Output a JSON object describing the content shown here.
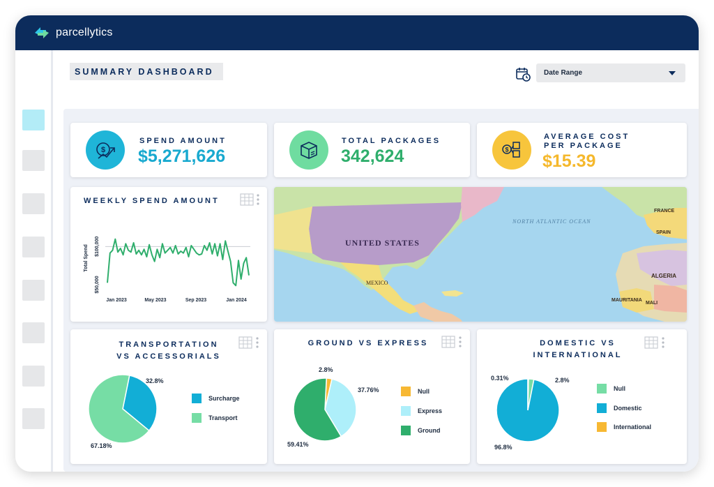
{
  "app": {
    "name": "parcellytics"
  },
  "page": {
    "title": "SUMMARY DASHBOARD"
  },
  "filters": {
    "date_range_label": "Date Range",
    "calendar_icon": "calendar-clock-icon"
  },
  "kpis": [
    {
      "label": "SPEND AMOUNT",
      "value": "$5,271,626",
      "icon": "money-chart-icon",
      "color": "#1fb5d8",
      "value_color": "#18a9cf"
    },
    {
      "label": "TOTAL PACKAGES",
      "value": "342,624",
      "icon": "package-box-icon",
      "color": "#6fdca0",
      "value_color": "#2fae6c"
    },
    {
      "label_line1": "AVERAGE COST",
      "label_line2": "PER PACKAGE",
      "value": "$15.39",
      "icon": "cost-per-package-icon",
      "color": "#f7c53c",
      "value_color": "#f5b82c"
    }
  ],
  "weekly_spend": {
    "title": "WEEKLY SPEND AMOUNT",
    "chart_data": {
      "type": "line",
      "title": "WEEKLY SPEND AMOUNT",
      "ylabel": "Total Spend",
      "xlabel": "",
      "x_ticks": [
        "Jan 2023",
        "May 2023",
        "Sep 2023",
        "Jan 2024"
      ],
      "y_ticks": [
        "$50,000",
        "$100,000"
      ],
      "ylim": [
        50000,
        125000
      ],
      "grid": "y",
      "series": [
        {
          "values": [
            61000,
            93000,
            96000,
            108000,
            94000,
            98000,
            91000,
            103000,
            96000,
            94000,
            104000,
            92000,
            96000,
            91000,
            97000,
            89000,
            102000,
            91000,
            84000,
            97000,
            88000,
            103000,
            93000,
            96000,
            99000,
            93000,
            101000,
            92000,
            95000,
            93000,
            99000,
            89000,
            101000,
            97000,
            93000,
            91000,
            92000,
            101000,
            96000,
            104000,
            92000,
            103000,
            90000,
            103000,
            86000,
            106000,
            95000,
            84000,
            61000,
            58000,
            85000,
            65000,
            82000,
            88000,
            69000
          ]
        }
      ],
      "color": "#2fae6c"
    }
  },
  "map": {
    "labels": [
      "UNITED STATES",
      "NORTH ATLANTIC OCEAN",
      "MEXICO",
      "ALGERIA",
      "MAURITANIA",
      "MALI",
      "FRANCE",
      "SPAIN"
    ]
  },
  "pie_transport": {
    "title_line1": "TRANSPORTATION",
    "title_line2": "VS ACCESSORIALS",
    "chart_data": {
      "type": "pie",
      "categories": [
        "Surcharge",
        "Transport"
      ],
      "values": [
        32.8,
        67.18
      ],
      "labels": [
        "32.8%",
        "67.18%"
      ],
      "colors": [
        "#12aed6",
        "#76dda5"
      ]
    }
  },
  "pie_ground": {
    "title": "GROUND VS EXPRESS",
    "chart_data": {
      "type": "pie",
      "categories": [
        "Null",
        "Express",
        "Ground"
      ],
      "values": [
        2.8,
        37.76,
        59.41
      ],
      "labels": [
        "2.8%",
        "37.76%",
        "59.41%"
      ],
      "colors": [
        "#f7b833",
        "#aeeffa",
        "#2fae6c"
      ]
    }
  },
  "pie_domestic": {
    "title_line1": "DOMESTIC VS",
    "title_line2": "INTERNATIONAL",
    "chart_data": {
      "type": "pie",
      "categories": [
        "Null",
        "Domestic",
        "International"
      ],
      "values": [
        2.8,
        96.8,
        0.31
      ],
      "labels": [
        "2.8%",
        "96.8%",
        "0.31%"
      ],
      "colors": [
        "#76dda5",
        "#12aed6",
        "#f7b833"
      ]
    }
  },
  "sidebar": {
    "items": 8
  }
}
